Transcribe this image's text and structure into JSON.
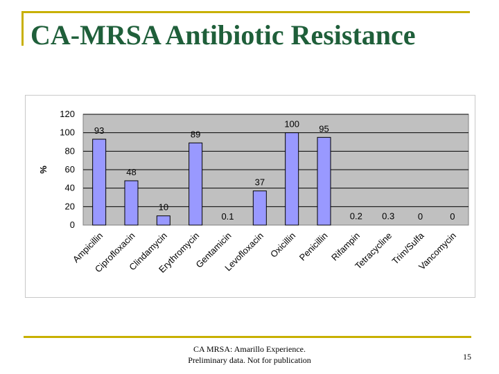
{
  "slide": {
    "title": "CA-MRSA Antibiotic Resistance",
    "footer_line1": "CA MRSA: Amarillo Experience.",
    "footer_line2": "Preliminary data. Not for publication",
    "page_number": "15"
  },
  "colors": {
    "accent_rule": "#c8b000",
    "title": "#1f5f3a",
    "plot_background": "#c0c0c0",
    "bar_fill": "#9999ff",
    "bar_stroke": "#000000"
  },
  "chart_data": {
    "type": "bar",
    "title": "",
    "xlabel": "",
    "ylabel": "%",
    "ylim": [
      0,
      120
    ],
    "yticks": [
      0,
      20,
      40,
      60,
      80,
      100,
      120
    ],
    "grid": true,
    "legend": "none",
    "categories": [
      "Ampicillin",
      "Ciprofloxacin",
      "Clindamycin",
      "Erythromycin",
      "Gentamicin",
      "Levofloxacin",
      "Oxicillin",
      "Penicillin",
      "Rifampin",
      "Tetracycline",
      "Trim/Sulfa",
      "Vancomycin"
    ],
    "values": [
      93,
      48,
      10,
      89,
      0.1,
      37,
      100,
      95,
      0.2,
      0.3,
      0,
      0
    ],
    "data_labels": [
      "93",
      "48",
      "10",
      "89",
      "0.1",
      "37",
      "100",
      "95",
      "0.2",
      "0.3",
      "0",
      "0"
    ]
  }
}
